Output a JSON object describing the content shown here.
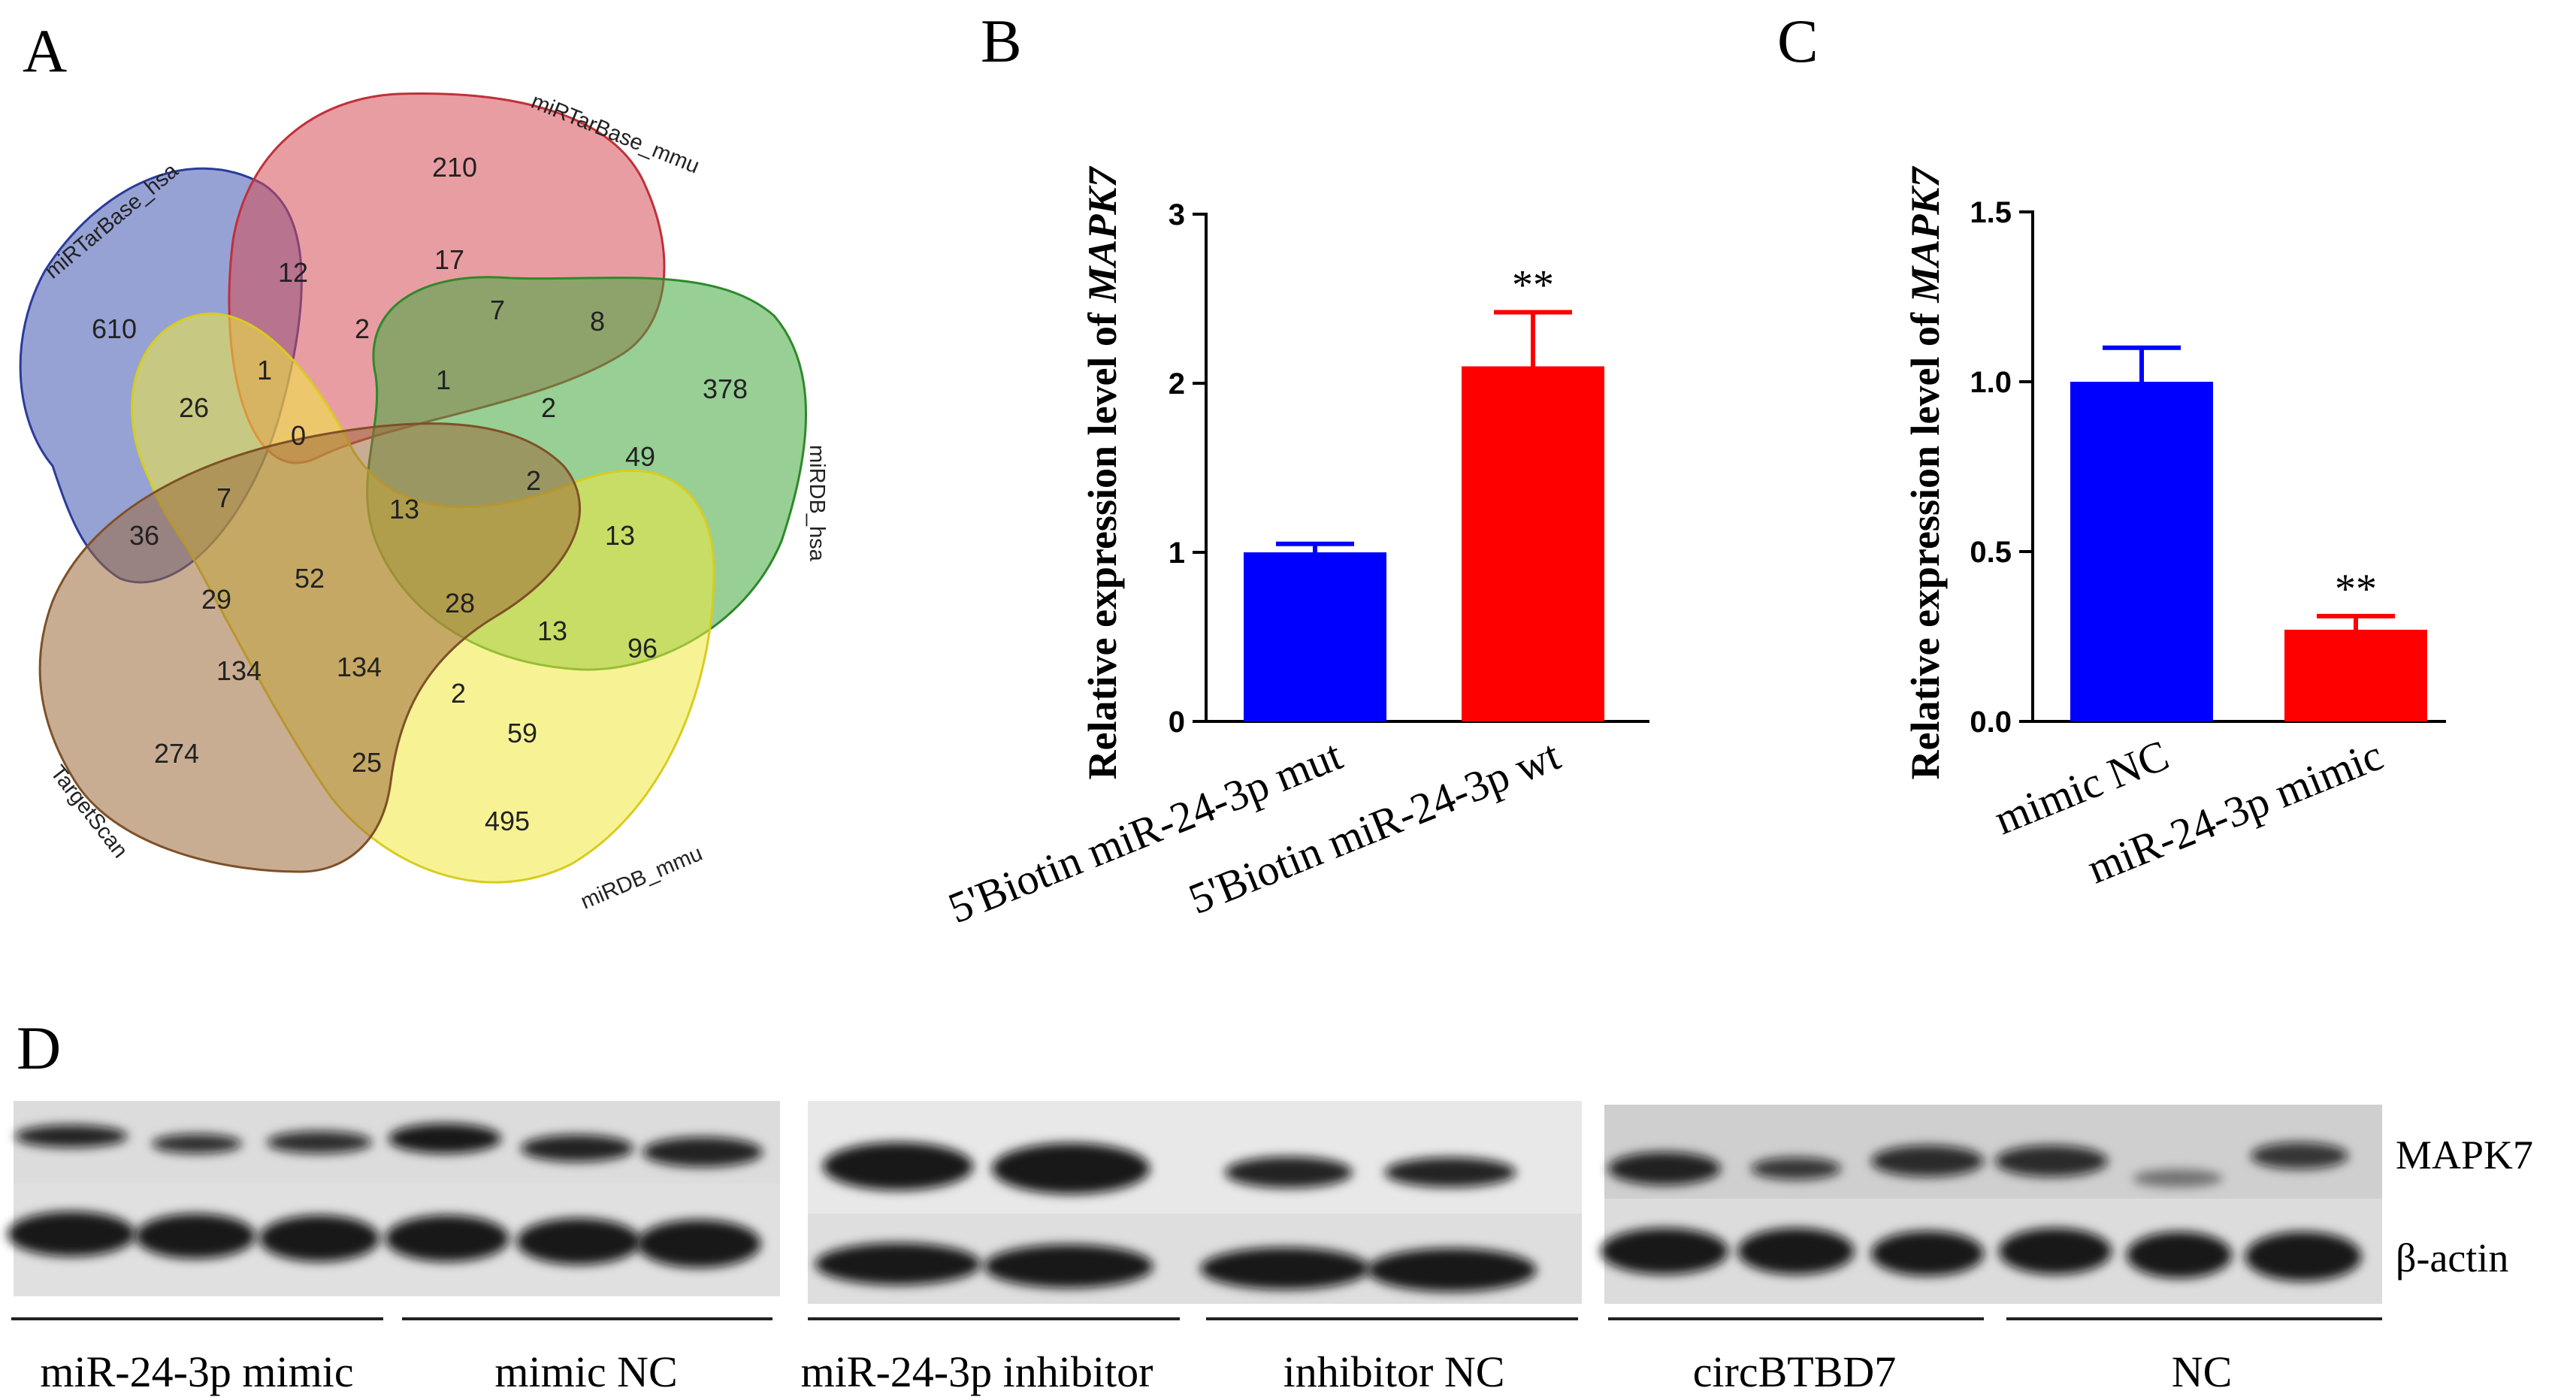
{
  "panels": {
    "a": "A",
    "b": "B",
    "c": "C",
    "d": "D"
  },
  "venn": {
    "sets": [
      {
        "name": "miRTarBase_hsa",
        "color": "#3f56b0"
      },
      {
        "name": "miRTarBase_mmu",
        "color": "#d64c55"
      },
      {
        "name": "miRDB_hsa",
        "color": "#42a83e"
      },
      {
        "name": "miRDB_mmu",
        "color": "#f0ea3e"
      },
      {
        "name": "TargetScan",
        "color": "#9c6a3b"
      }
    ],
    "counts": [
      "610",
      "210",
      "378",
      "495",
      "274",
      "12",
      "17",
      "7",
      "8",
      "2",
      "1",
      "26",
      "1",
      "0",
      "2",
      "49",
      "7",
      "13",
      "2",
      "13",
      "36",
      "52",
      "28",
      "13",
      "96",
      "29",
      "134",
      "134",
      "2",
      "59",
      "25"
    ]
  },
  "chart_data": [
    {
      "type": "bar",
      "title": "",
      "ylabel_prefix": "Relative  expression level of ",
      "ylabel_gene": "MAPK7",
      "categories": [
        "5'Biotin miR-24-3p mut",
        "5'Biotin miR-24-3p wt"
      ],
      "values": [
        1.0,
        2.1
      ],
      "errors": [
        0.05,
        0.32
      ],
      "colors": [
        "#0000ff",
        "#ff0000"
      ],
      "significance": [
        "",
        "**"
      ],
      "ylim": [
        0,
        3
      ],
      "yticks": [
        "0",
        "1",
        "2",
        "3"
      ]
    },
    {
      "type": "bar",
      "title": "",
      "ylabel_prefix": "Relative  expression level of ",
      "ylabel_gene": "MAPK7",
      "categories": [
        "mimic NC",
        "miR-24-3p mimic"
      ],
      "values": [
        1.0,
        0.27
      ],
      "errors": [
        0.1,
        0.04
      ],
      "colors": [
        "#0000ff",
        "#ff0000"
      ],
      "significance": [
        "",
        "**"
      ],
      "ylim": [
        0,
        1.5
      ],
      "yticks": [
        "0.0",
        "0.5",
        "1.0",
        "1.5"
      ]
    }
  ],
  "blot": {
    "proteins": [
      "MAPK7",
      "β-actin"
    ],
    "groups": [
      "miR-24-3p mimic",
      "mimic NC",
      "miR-24-3p inhibitor",
      "inhibitor NC",
      "circBTBD7",
      "NC"
    ]
  }
}
